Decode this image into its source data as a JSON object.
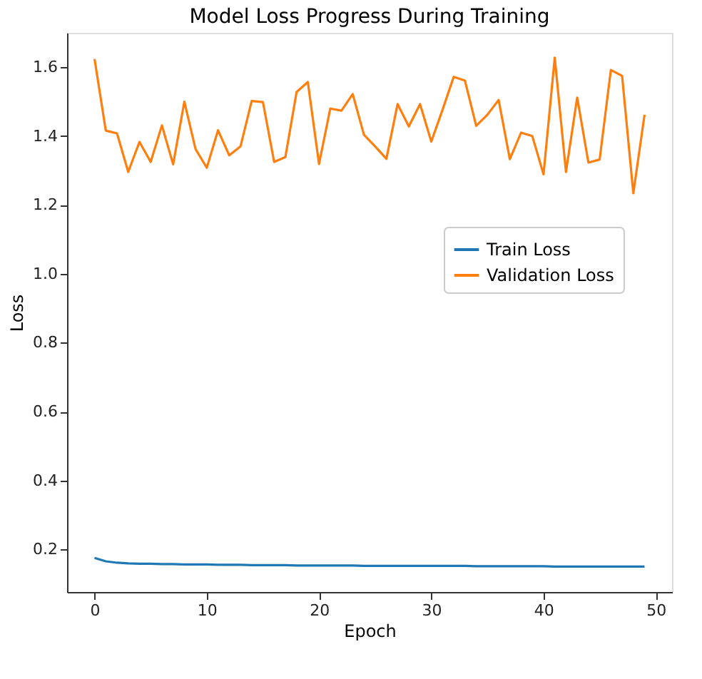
{
  "chart_data": {
    "type": "line",
    "title": "Model Loss Progress During Training",
    "xlabel": "Epoch",
    "ylabel": "Loss",
    "x": [
      0,
      1,
      2,
      3,
      4,
      5,
      6,
      7,
      8,
      9,
      10,
      11,
      12,
      13,
      14,
      15,
      16,
      17,
      18,
      19,
      20,
      21,
      22,
      23,
      24,
      25,
      26,
      27,
      28,
      29,
      30,
      31,
      32,
      33,
      34,
      35,
      36,
      37,
      38,
      39,
      40,
      41,
      42,
      43,
      44,
      45,
      46,
      47,
      48,
      49
    ],
    "series": [
      {
        "name": "Train Loss",
        "color": "#1f77b4",
        "values": [
          0.175,
          0.165,
          0.161,
          0.159,
          0.158,
          0.158,
          0.157,
          0.157,
          0.156,
          0.156,
          0.156,
          0.155,
          0.155,
          0.155,
          0.154,
          0.154,
          0.154,
          0.154,
          0.153,
          0.153,
          0.153,
          0.153,
          0.153,
          0.153,
          0.152,
          0.152,
          0.152,
          0.152,
          0.152,
          0.152,
          0.152,
          0.152,
          0.152,
          0.152,
          0.151,
          0.151,
          0.151,
          0.151,
          0.151,
          0.151,
          0.151,
          0.15,
          0.15,
          0.15,
          0.15,
          0.15,
          0.15,
          0.15,
          0.15,
          0.15
        ]
      },
      {
        "name": "Validation Loss",
        "color": "#ff7f0e",
        "values": [
          1.624,
          1.416,
          1.408,
          1.296,
          1.383,
          1.325,
          1.431,
          1.318,
          1.5,
          1.362,
          1.308,
          1.417,
          1.344,
          1.37,
          1.502,
          1.499,
          1.325,
          1.339,
          1.528,
          1.557,
          1.319,
          1.48,
          1.474,
          1.522,
          1.404,
          1.37,
          1.334,
          1.493,
          1.428,
          1.493,
          1.384,
          1.476,
          1.572,
          1.561,
          1.43,
          1.462,
          1.505,
          1.333,
          1.41,
          1.4,
          1.289,
          1.628,
          1.296,
          1.512,
          1.323,
          1.332,
          1.592,
          1.575,
          1.234,
          1.462
        ]
      }
    ],
    "xlim": [
      -2.45,
      51.45
    ],
    "xticks": [
      0,
      10,
      20,
      30,
      40,
      50
    ],
    "ylim": [
      0.076,
      1.7
    ],
    "yticks": [
      {
        "value": 0.2,
        "label": "0.2"
      },
      {
        "value": 0.4,
        "label": "0.4"
      },
      {
        "value": 0.6,
        "label": "0.6"
      },
      {
        "value": 0.8,
        "label": "0.8"
      },
      {
        "value": 1.0,
        "label": "1.0"
      },
      {
        "value": 1.2,
        "label": "1.2"
      },
      {
        "value": 1.4,
        "label": "1.4"
      },
      {
        "value": 1.6,
        "label": "1.6"
      }
    ],
    "grid": false,
    "legend": "right",
    "marker": "none",
    "line_style": "solid"
  }
}
